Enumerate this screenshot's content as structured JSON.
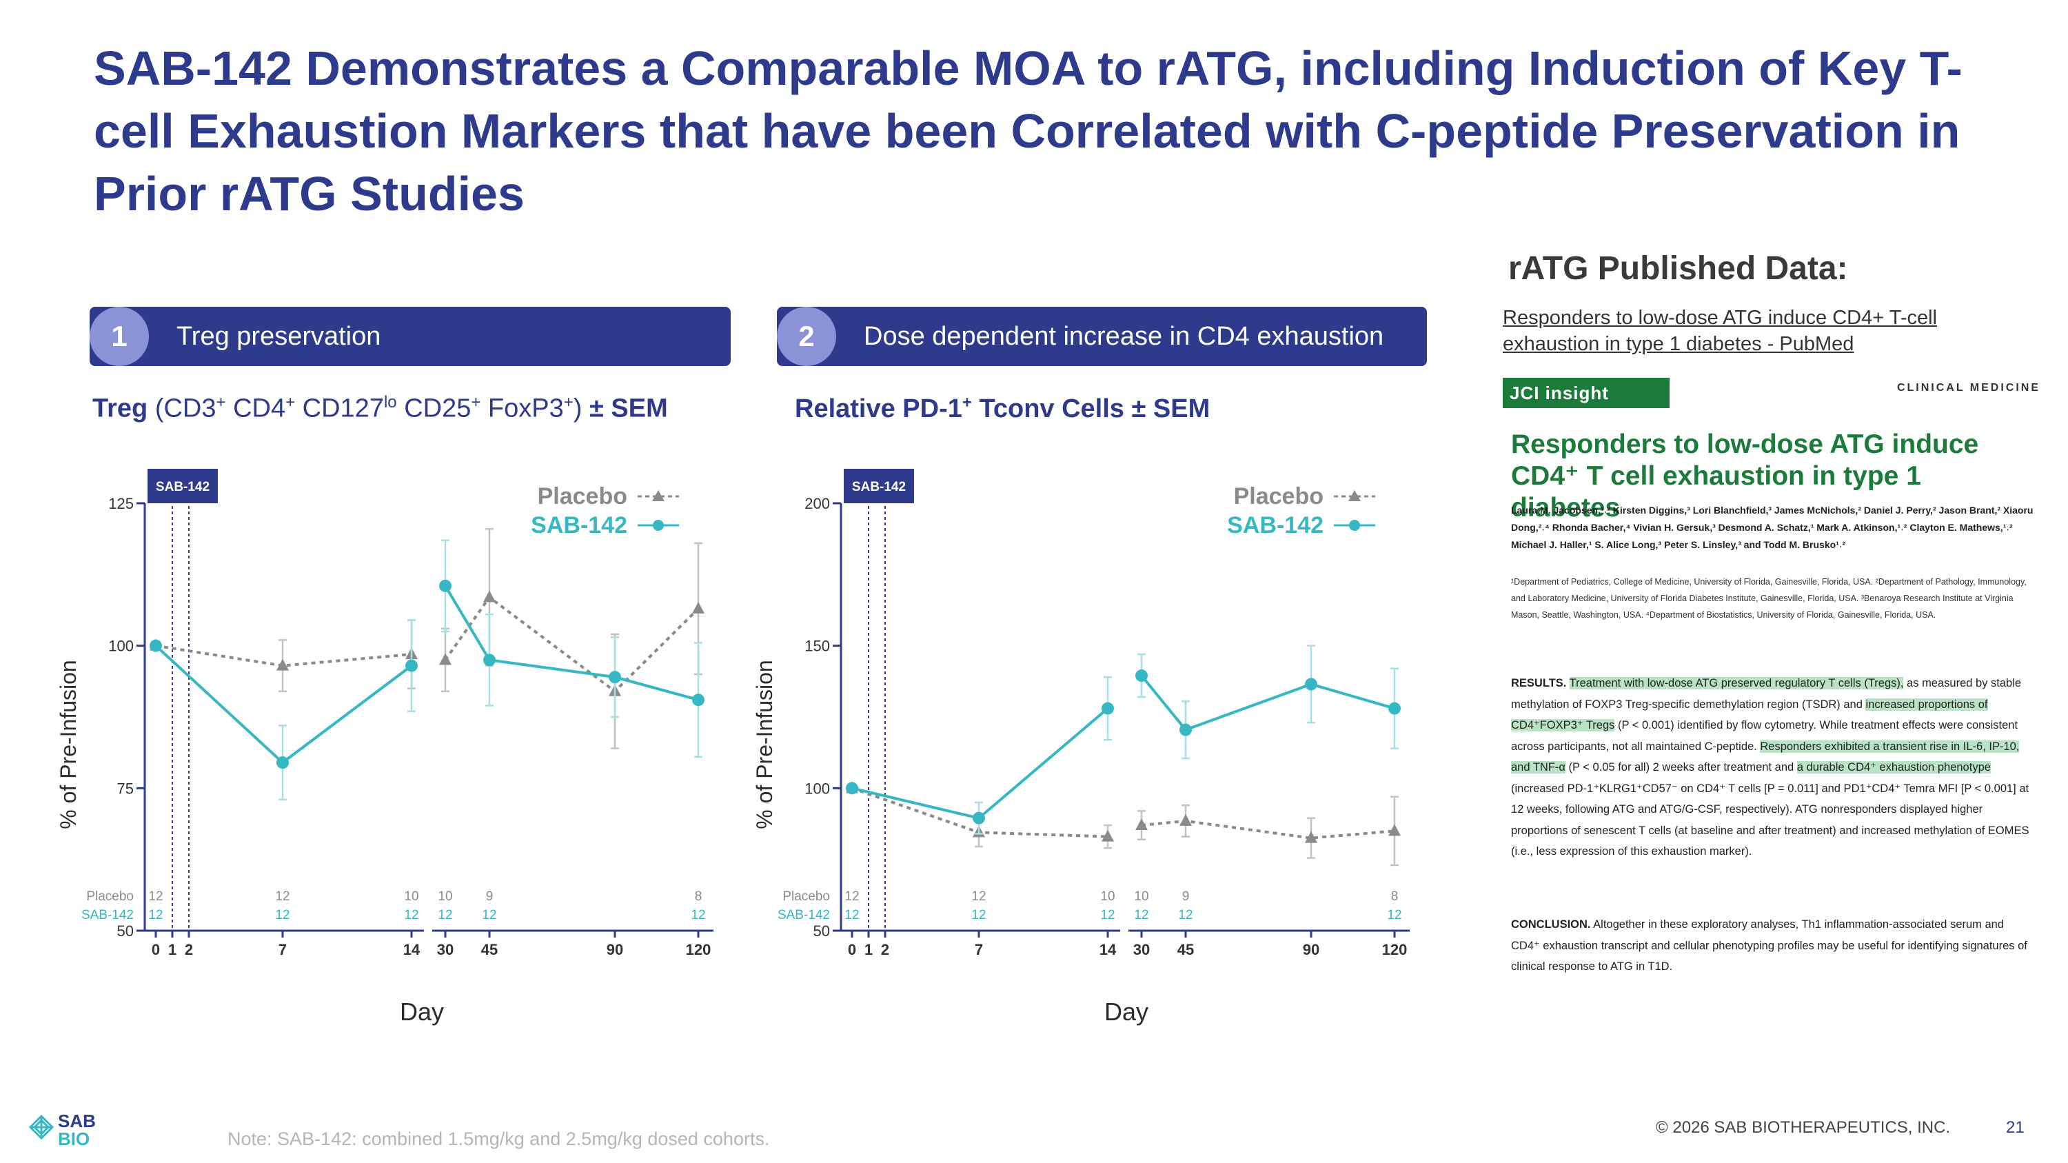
{
  "title": "SAB-142 Demonstrates a Comparable MOA to rATG, including Induction of Key T-cell Exhaustion Markers that have been Correlated with C-peptide Preservation in Prior rATG Studies",
  "panels": [
    {
      "number": "1",
      "label": "Treg preservation"
    },
    {
      "number": "2",
      "label": "Dose dependent increase in CD4 exhaustion"
    }
  ],
  "chart_titles": {
    "left": {
      "bold": "Treg",
      "parts": [
        "(CD3",
        "+",
        " CD4",
        "+",
        " CD127",
        "lo",
        " CD25",
        "+",
        "  FoxP3",
        "+",
        ")"
      ],
      "suffix": "± SEM"
    },
    "right": {
      "main": "Relative PD-1",
      "sup": "+",
      "rest": " Tconv Cells ± SEM"
    }
  },
  "chart_data": [
    {
      "type": "line",
      "ylabel": "% of Pre-Infusion",
      "xlabel": "Day",
      "ylim": [
        50,
        125
      ],
      "yticks": [
        50,
        75,
        100,
        125
      ],
      "x_ticks": [
        "0",
        "1",
        "2",
        "7",
        "14",
        "30",
        "45",
        "90",
        "120"
      ],
      "dosing_label": "SAB-142",
      "legend_position": "top-right",
      "series": [
        {
          "name": "Placebo",
          "color": "#8a8a8a",
          "marker": "triangle",
          "dashed": true,
          "points": [
            {
              "x": "0",
              "y": 100,
              "err": 0
            },
            {
              "x": "7",
              "y": 96.5,
              "err": 4.5
            },
            {
              "x": "14",
              "y": 98.5,
              "err": 6
            },
            {
              "x": "30",
              "y": 97.5,
              "err": 5.5
            },
            {
              "x": "45",
              "y": 108.5,
              "err": 12
            },
            {
              "x": "90",
              "y": 92,
              "err": 10
            },
            {
              "x": "120",
              "y": 106.5,
              "err": 11.5
            }
          ],
          "segments": [
            [
              0,
              1,
              2
            ],
            [
              3,
              4,
              5,
              6
            ]
          ]
        },
        {
          "name": "SAB-142",
          "color": "#35b8c4",
          "marker": "circle",
          "dashed": false,
          "points": [
            {
              "x": "0",
              "y": 100,
              "err": 0
            },
            {
              "x": "7",
              "y": 79.5,
              "err": 6.5
            },
            {
              "x": "14",
              "y": 96.5,
              "err": 8
            },
            {
              "x": "30",
              "y": 110.5,
              "err": 8
            },
            {
              "x": "45",
              "y": 97.5,
              "err": 8
            },
            {
              "x": "90",
              "y": 94.5,
              "err": 7
            },
            {
              "x": "120",
              "y": 90.5,
              "err": 10
            }
          ],
          "segments": [
            [
              0,
              1,
              2
            ],
            [
              3,
              4,
              5,
              6
            ]
          ]
        }
      ],
      "n_rows": [
        {
          "name": "Placebo",
          "values": {
            "0": "12",
            "7": "12",
            "14": "10",
            "30": "10",
            "45": "9",
            "120": "8"
          }
        },
        {
          "name": "SAB-142",
          "values": {
            "0": "12",
            "7": "12",
            "14": "12",
            "30": "12",
            "45": "12",
            "120": "12"
          }
        }
      ]
    },
    {
      "type": "line",
      "ylabel": "% of Pre-Infusion",
      "xlabel": "Day",
      "ylim": [
        50,
        200
      ],
      "yticks": [
        50,
        100,
        150,
        200
      ],
      "x_ticks": [
        "0",
        "1",
        "2",
        "7",
        "14",
        "30",
        "45",
        "90",
        "120"
      ],
      "dosing_label": "SAB-142",
      "legend_position": "top-right",
      "series": [
        {
          "name": "Placebo",
          "color": "#8a8a8a",
          "marker": "triangle",
          "dashed": true,
          "points": [
            {
              "x": "0",
              "y": 100,
              "err": 0
            },
            {
              "x": "7",
              "y": 84.5,
              "err": 5
            },
            {
              "x": "14",
              "y": 83,
              "err": 4
            },
            {
              "x": "30",
              "y": 87,
              "err": 5
            },
            {
              "x": "45",
              "y": 88.5,
              "err": 5.5
            },
            {
              "x": "90",
              "y": 82.5,
              "err": 7
            },
            {
              "x": "120",
              "y": 85,
              "err": 12
            }
          ],
          "segments": [
            [
              0,
              1,
              2
            ],
            [
              3,
              4,
              5,
              6
            ]
          ]
        },
        {
          "name": "SAB-142",
          "color": "#35b8c4",
          "marker": "circle",
          "dashed": false,
          "points": [
            {
              "x": "0",
              "y": 100,
              "err": 0
            },
            {
              "x": "7",
              "y": 89.5,
              "err": 5.5
            },
            {
              "x": "14",
              "y": 128,
              "err": 11
            },
            {
              "x": "30",
              "y": 139.5,
              "err": 7.5
            },
            {
              "x": "45",
              "y": 120.5,
              "err": 10
            },
            {
              "x": "90",
              "y": 136.5,
              "err": 13.5
            },
            {
              "x": "120",
              "y": 128,
              "err": 14
            }
          ],
          "segments": [
            [
              0,
              1,
              2
            ],
            [
              3,
              4,
              5,
              6
            ]
          ]
        }
      ],
      "n_rows": [
        {
          "name": "Placebo",
          "values": {
            "0": "12",
            "7": "12",
            "14": "10",
            "30": "10",
            "45": "9",
            "120": "8"
          }
        },
        {
          "name": "SAB-142",
          "values": {
            "0": "12",
            "7": "12",
            "14": "12",
            "30": "12",
            "45": "12",
            "120": "12"
          }
        }
      ]
    }
  ],
  "right": {
    "heading": "rATG Published Data:",
    "link": "Responders to low-dose ATG induce CD4+ T-cell exhaustion in type 1 diabetes - PubMed",
    "journal": "JCI insight",
    "section": "CLINICAL MEDICINE",
    "paper_title": "Responders to low-dose ATG induce CD4⁺ T cell exhaustion in type 1 diabetes",
    "authors": "Laura M. Jacobsen,¹˒² Kirsten Diggins,³ Lori Blanchfield,³ James McNichols,² Daniel J. Perry,² Jason Brant,² Xiaoru Dong,²˒⁴ Rhonda Bacher,⁴ Vivian H. Gersuk,³ Desmond A. Schatz,¹ Mark A. Atkinson,¹˒² Clayton E. Mathews,¹˒² Michael J. Haller,¹ S. Alice Long,³ Peter S. Linsley,³ and Todd M. Brusko¹˒²",
    "affiliations": "¹Department of Pediatrics, College of Medicine, University of Florida, Gainesville, Florida, USA. ²Department of Pathology, Immunology, and Laboratory Medicine, University of Florida Diabetes Institute, Gainesville, Florida, USA. ³Benaroya Research Institute at Virginia Mason, Seattle, Washington, USA. ⁴Department of Biostatistics, University of Florida, Gainesville, Florida, USA.",
    "results": {
      "label": "RESULTS.",
      "s1": "Treatment with low-dose ATG preserved regulatory T cells (Tregs),",
      "s2": " as measured by stable methylation of FOXP3 Treg-specific demethylation region (TSDR) and ",
      "s3": "increased proportions of CD4⁺FOXP3⁺ Tregs",
      "s4": " (P < 0.001) identified by flow cytometry. While treatment effects were consistent across participants, not all maintained C-peptide. ",
      "s5": "Responders exhibited a transient rise in IL-6, IP-10, and TNF-α",
      "s6": " (P < 0.05 for all) 2 weeks after treatment and ",
      "s7": "a durable CD4⁺ exhaustion phenotype",
      "s8": " (increased PD-1⁺KLRG1⁺CD57⁻ on CD4⁺ T cells [P = 0.011] and PD1⁺CD4⁺ Temra MFI [P < 0.001] at 12 weeks, following ATG and ATG/G-CSF, respectively). ATG nonresponders displayed higher proportions of senescent T cells (at baseline and after treatment) and increased methylation of EOMES (i.e., less expression of this exhaustion marker)."
    },
    "conclusion": {
      "label": "CONCLUSION.",
      "text": " Altogether in these exploratory analyses, Th1 inflammation-associated serum and CD4⁺ exhaustion transcript and cellular phenotyping profiles may be useful for identifying signatures of clinical response to ATG in T1D."
    }
  },
  "footer": {
    "logo_text_top": "SAB",
    "logo_text_bottom": "BIO",
    "note": "Note: SAB-142: combined 1.5mg/kg and 2.5mg/kg dosed cohorts.",
    "copyright": "© 2026 SAB BIOTHERAPEUTICS, INC.",
    "page": "21"
  },
  "colors": {
    "navy": "#2e3a8c",
    "teal": "#35b8c4",
    "gray": "#8a8a8a",
    "green": "#1b7b3a"
  }
}
